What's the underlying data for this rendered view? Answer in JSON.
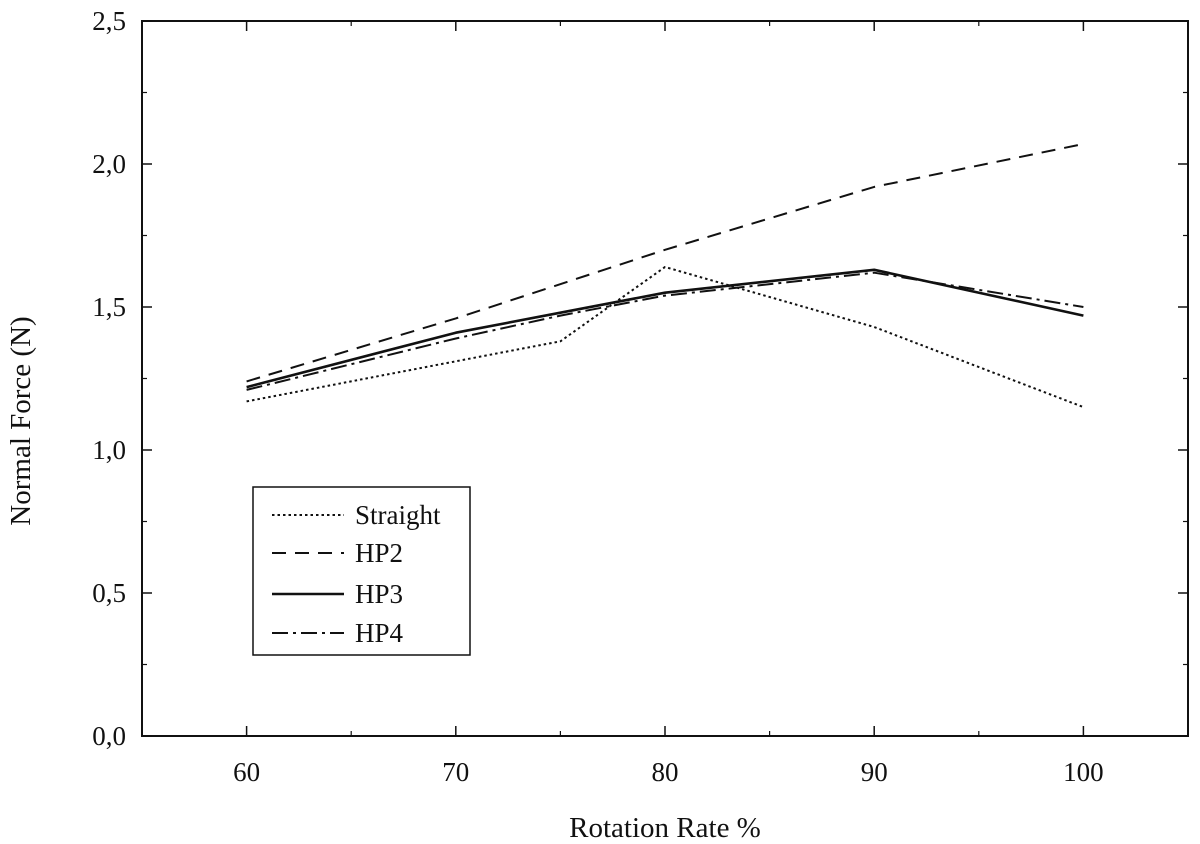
{
  "chart_data": {
    "type": "line",
    "title": "",
    "xlabel": "Rotation Rate %",
    "ylabel": "Normal Force (N)",
    "xlim": [
      55,
      105
    ],
    "ylim": [
      0.0,
      2.5
    ],
    "xticks": [
      60,
      70,
      80,
      90,
      100
    ],
    "xtick_labels": [
      "60",
      "70",
      "80",
      "90",
      "100"
    ],
    "yticks": [
      0.0,
      0.5,
      1.0,
      1.5,
      2.0,
      2.5
    ],
    "ytick_labels": [
      "0,0",
      "0,5",
      "1,0",
      "1,5",
      "2,0",
      "2,5"
    ],
    "grid": false,
    "legend_position": "lower-left",
    "series": [
      {
        "name": "Straight",
        "style": "dotted",
        "x": [
          60,
          70,
          75,
          80,
          90,
          100
        ],
        "y": [
          1.17,
          1.31,
          1.38,
          1.64,
          1.43,
          1.15
        ]
      },
      {
        "name": "HP2",
        "style": "dashed",
        "x": [
          60,
          70,
          80,
          90,
          100
        ],
        "y": [
          1.24,
          1.46,
          1.7,
          1.92,
          2.07
        ]
      },
      {
        "name": "HP3",
        "style": "solid",
        "x": [
          60,
          70,
          75,
          80,
          90,
          100
        ],
        "y": [
          1.22,
          1.41,
          1.48,
          1.55,
          1.63,
          1.47
        ]
      },
      {
        "name": "HP4",
        "style": "dash-dot",
        "x": [
          60,
          70,
          75,
          80,
          90,
          100
        ],
        "y": [
          1.21,
          1.39,
          1.47,
          1.54,
          1.62,
          1.5
        ]
      }
    ]
  }
}
